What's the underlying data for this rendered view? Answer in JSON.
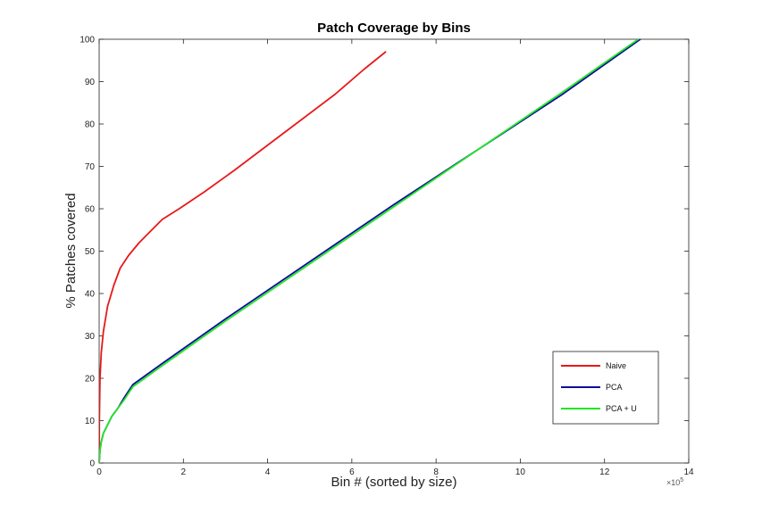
{
  "chart_data": {
    "type": "line",
    "title": "Patch Coverage by Bins",
    "xlabel": "Bin # (sorted by size)",
    "ylabel": "% Patches covered",
    "x_multiplier_base": "×10",
    "x_multiplier_exp": "5",
    "xlim": [
      0,
      14
    ],
    "ylim": [
      0,
      100
    ],
    "xticks": [
      "0",
      "2",
      "4",
      "6",
      "8",
      "10",
      "12",
      "14"
    ],
    "yticks": [
      "0",
      "10",
      "20",
      "30",
      "40",
      "50",
      "60",
      "70",
      "80",
      "90",
      "100"
    ],
    "grid": false,
    "legend_position": "bottom-right",
    "series": [
      {
        "name": "Naive",
        "color": "#e8191a",
        "x": [
          0,
          0.005,
          0.02,
          0.05,
          0.1,
          0.2,
          0.35,
          0.5,
          0.7,
          0.95,
          1.2,
          1.5,
          1.9,
          2.5,
          3.2,
          4.0,
          4.8,
          5.6,
          6.3,
          6.8
        ],
        "y": [
          0,
          10,
          20,
          26,
          31,
          37,
          42,
          46,
          49,
          52,
          54.5,
          57.5,
          60,
          64,
          69,
          75,
          81,
          87,
          93,
          97
        ]
      },
      {
        "name": "PCA",
        "color": "#0d0d9e",
        "x": [
          0,
          0.02,
          0.05,
          0.1,
          0.2,
          0.3,
          0.45,
          0.6,
          0.8,
          1.5,
          3.0,
          5.0,
          7.0,
          9.0,
          11.0,
          12.85
        ],
        "y": [
          0,
          3,
          5,
          7,
          9,
          11,
          13,
          15.5,
          18.5,
          23.5,
          34,
          47.5,
          61,
          74,
          87,
          100
        ]
      },
      {
        "name": "PCA + U",
        "color": "#22e622",
        "x": [
          0,
          0.02,
          0.05,
          0.1,
          0.2,
          0.3,
          0.45,
          0.6,
          0.8,
          1.5,
          3.0,
          5.0,
          7.0,
          9.0,
          11.0,
          12.8
        ],
        "y": [
          0,
          3,
          5,
          7,
          9,
          11,
          13,
          15,
          18,
          23,
          33.5,
          47,
          60.5,
          74,
          87.5,
          100
        ]
      }
    ]
  }
}
